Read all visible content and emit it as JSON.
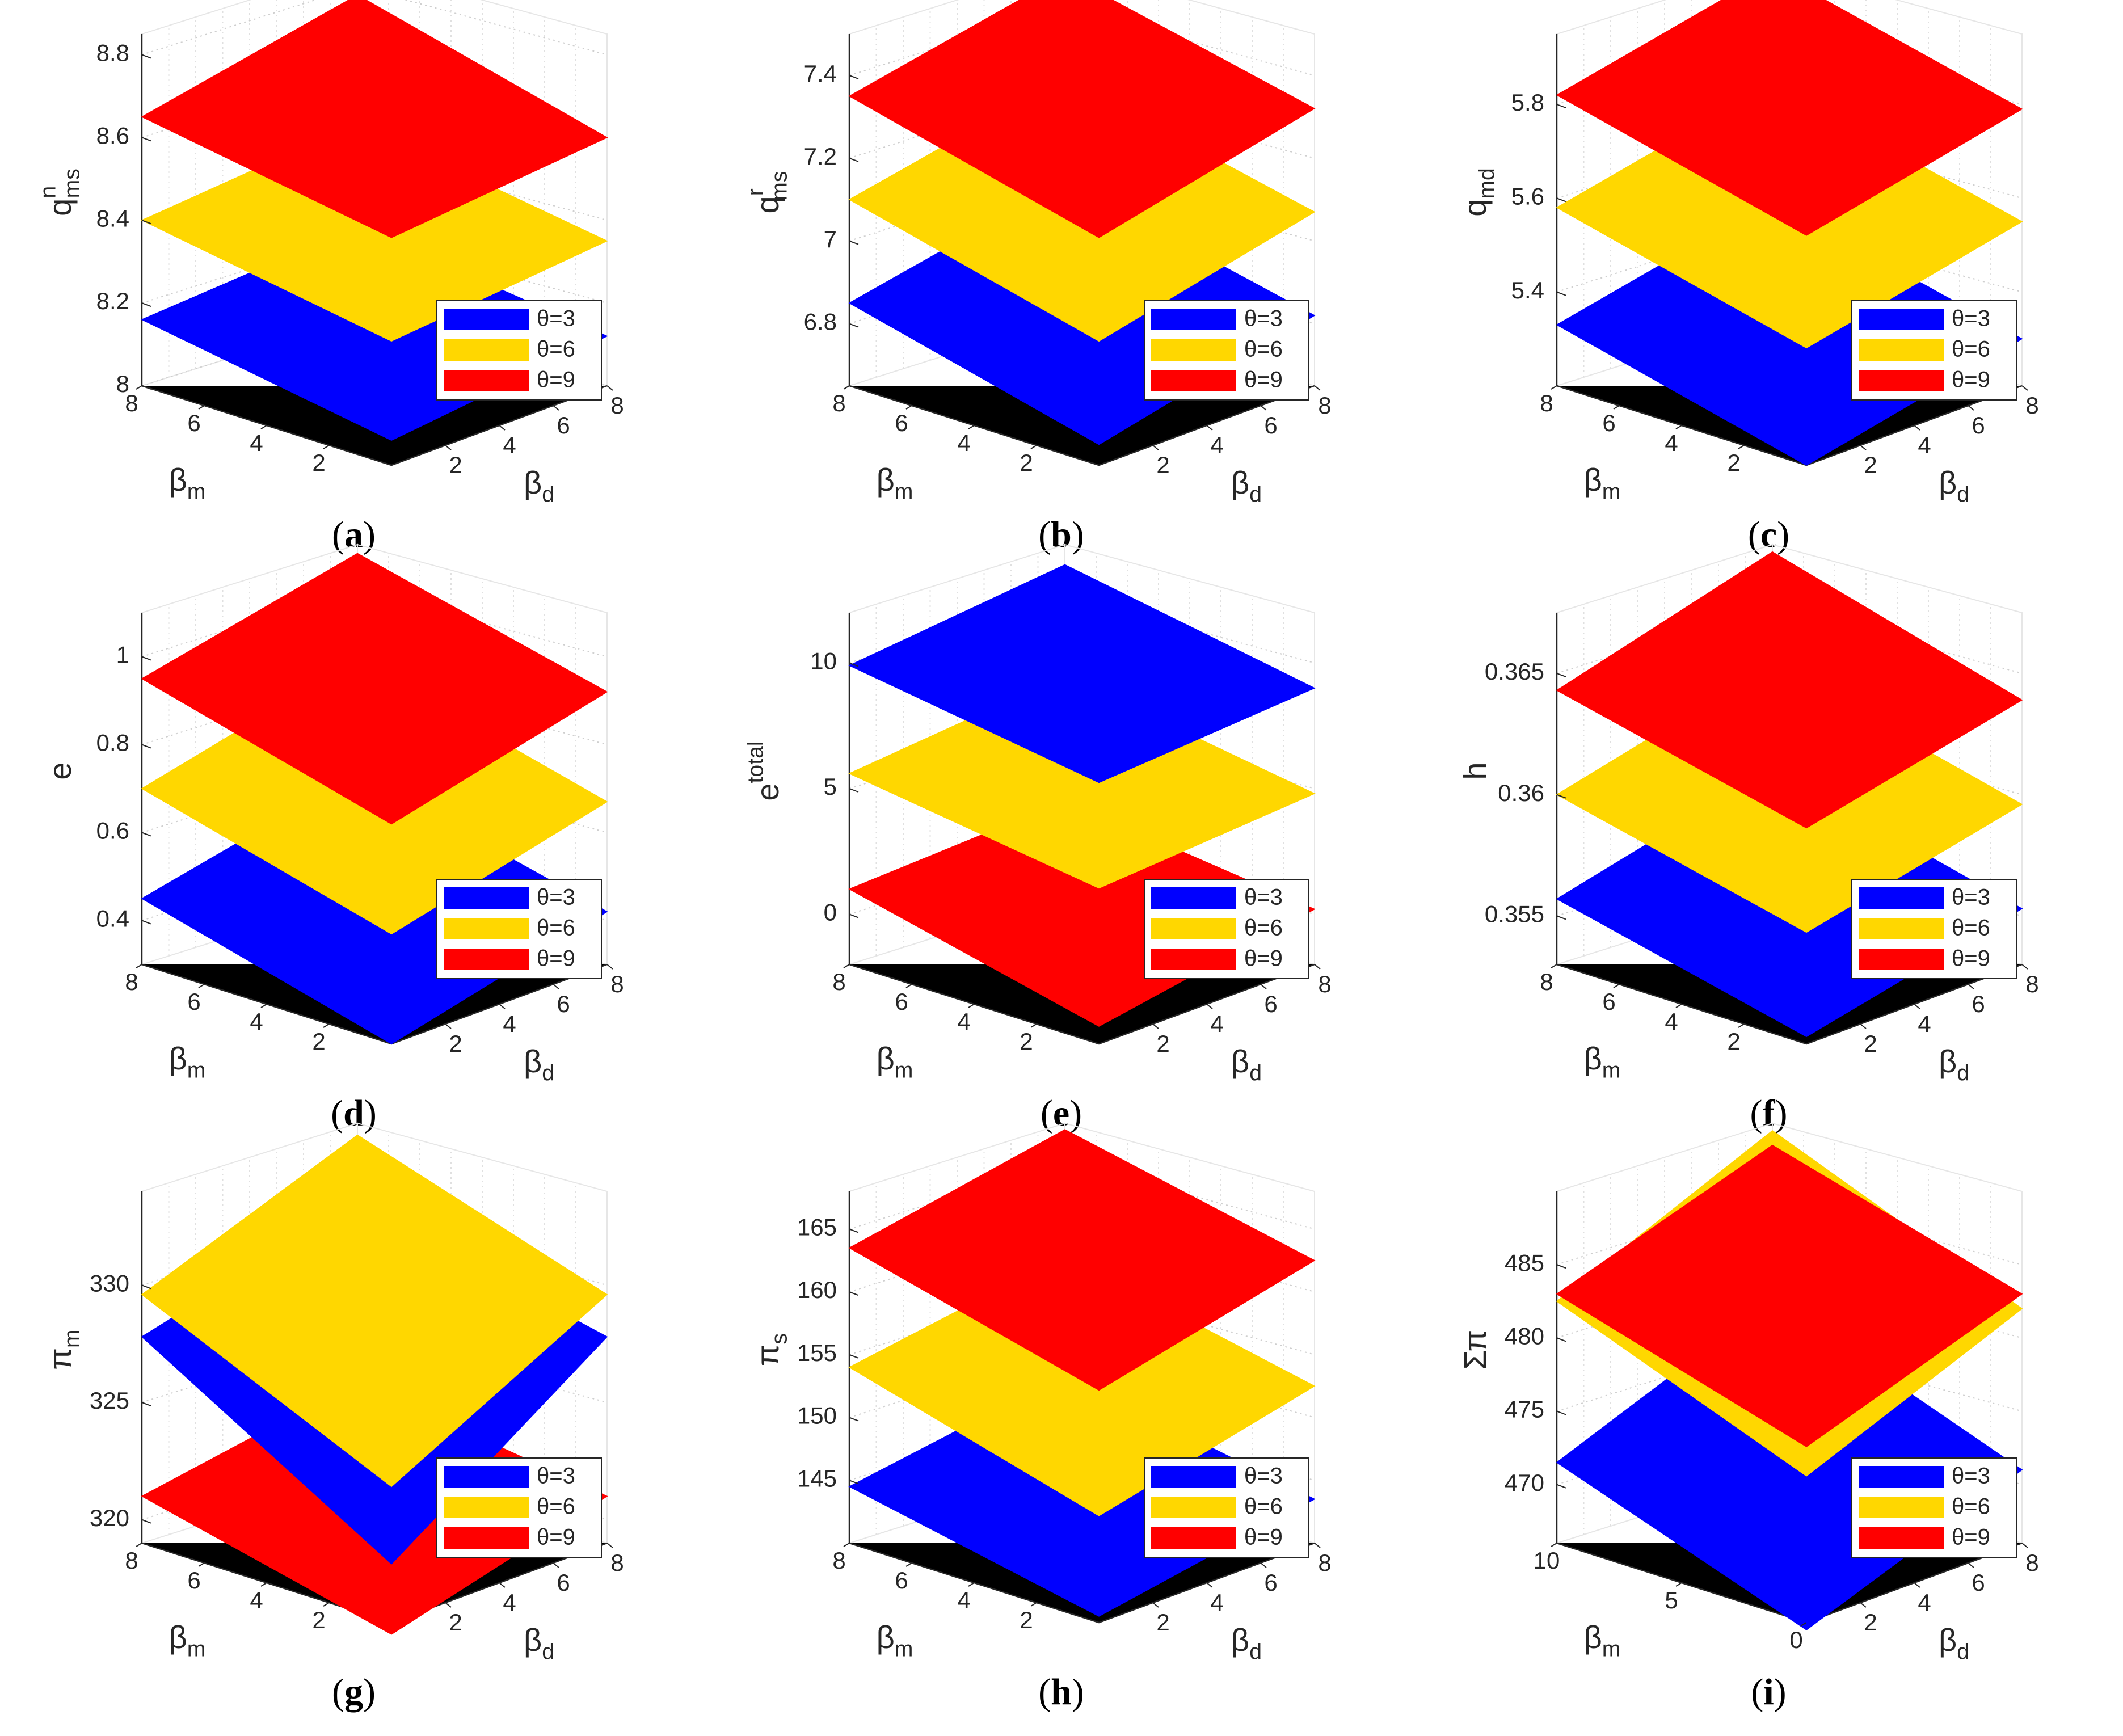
{
  "legend_labels": [
    "θ=3",
    "θ=6",
    "θ=9"
  ],
  "series_colors": {
    "θ=3": "#0000ff",
    "θ=6": "#ffd700",
    "θ=9": "#ff0000"
  },
  "chart_data": [
    {
      "panel": "a",
      "type": "surface",
      "caption_letter": "a",
      "zlabel": "q",
      "zlabel_sup": "n",
      "zlabel_sub": "ms",
      "xlabel": "β",
      "xlabel_sub": "m",
      "ylabel": "β",
      "ylabel_sub": "d",
      "xticks": [
        "8",
        "6",
        "4",
        "2"
      ],
      "yticks": [
        "2",
        "4",
        "6",
        "8"
      ],
      "zticks": [
        "8",
        "8.2",
        "8.4",
        "8.6",
        "8.8"
      ],
      "zlim": [
        8.0,
        8.85
      ],
      "beta_range": [
        0,
        8
      ],
      "series": [
        {
          "name": "θ=3",
          "corners": {
            "m8d0": 8.16,
            "m0d0": 8.06,
            "m0d8": 8.12,
            "m8d8": 8.22
          }
        },
        {
          "name": "θ=6",
          "corners": {
            "m8d0": 8.4,
            "m0d0": 8.3,
            "m0d8": 8.35,
            "m8d8": 8.47
          }
        },
        {
          "name": "θ=9",
          "corners": {
            "m8d0": 8.65,
            "m0d0": 8.55,
            "m0d8": 8.6,
            "m8d8": 8.78
          }
        }
      ]
    },
    {
      "panel": "b",
      "type": "surface",
      "caption_letter": "b",
      "zlabel": "q",
      "zlabel_sup": "r",
      "zlabel_sub": "ms",
      "xlabel": "β",
      "xlabel_sub": "m",
      "ylabel": "β",
      "ylabel_sub": "d",
      "xticks": [
        "8",
        "6",
        "4",
        "2"
      ],
      "yticks": [
        "2",
        "4",
        "6",
        "8"
      ],
      "zticks": [
        "6.8",
        "7",
        "7.2",
        "7.4"
      ],
      "zlim": [
        6.65,
        7.5
      ],
      "beta_range": [
        0,
        8
      ],
      "series": [
        {
          "name": "θ=3",
          "corners": {
            "m8d0": 6.85,
            "m0d0": 6.7,
            "m0d8": 6.82,
            "m8d8": 6.98
          }
        },
        {
          "name": "θ=6",
          "corners": {
            "m8d0": 7.1,
            "m0d0": 6.95,
            "m0d8": 7.07,
            "m8d8": 7.23
          }
        },
        {
          "name": "θ=9",
          "corners": {
            "m8d0": 7.35,
            "m0d0": 7.2,
            "m0d8": 7.32,
            "m8d8": 7.48
          }
        }
      ]
    },
    {
      "panel": "c",
      "type": "surface",
      "caption_letter": "c",
      "zlabel": "q",
      "zlabel_sub": "md",
      "xlabel": "β",
      "xlabel_sub": "m",
      "ylabel": "β",
      "ylabel_sub": "d",
      "xticks": [
        "8",
        "6",
        "4",
        "2"
      ],
      "yticks": [
        "2",
        "4",
        "6",
        "8"
      ],
      "zticks": [
        "5.4",
        "5.6",
        "5.8"
      ],
      "zlim": [
        5.2,
        5.95
      ],
      "beta_range": [
        0,
        8
      ],
      "series": [
        {
          "name": "θ=3",
          "corners": {
            "m8d0": 5.33,
            "m0d0": 5.2,
            "m0d8": 5.3,
            "m8d8": 5.45
          }
        },
        {
          "name": "θ=6",
          "corners": {
            "m8d0": 5.58,
            "m0d0": 5.45,
            "m0d8": 5.55,
            "m8d8": 5.7
          }
        },
        {
          "name": "θ=9",
          "corners": {
            "m8d0": 5.82,
            "m0d0": 5.69,
            "m0d8": 5.79,
            "m8d8": 5.94
          }
        }
      ]
    },
    {
      "panel": "d",
      "type": "surface",
      "caption_letter": "d",
      "zlabel": "e",
      "xlabel": "β",
      "xlabel_sub": "m",
      "ylabel": "β",
      "ylabel_sub": "d",
      "xticks": [
        "8",
        "6",
        "4",
        "2"
      ],
      "yticks": [
        "2",
        "4",
        "6",
        "8"
      ],
      "zticks": [
        "0.4",
        "0.6",
        "0.8",
        "1"
      ],
      "zlim": [
        0.3,
        1.1
      ],
      "beta_range": [
        0,
        8
      ],
      "series": [
        {
          "name": "θ=3",
          "corners": {
            "m8d0": 0.45,
            "m0d0": 0.3,
            "m0d8": 0.42,
            "m8d8": 0.58
          }
        },
        {
          "name": "θ=6",
          "corners": {
            "m8d0": 0.7,
            "m0d0": 0.55,
            "m0d8": 0.67,
            "m8d8": 0.84
          }
        },
        {
          "name": "θ=9",
          "corners": {
            "m8d0": 0.95,
            "m0d0": 0.8,
            "m0d8": 0.92,
            "m8d8": 1.08
          }
        }
      ]
    },
    {
      "panel": "e",
      "type": "surface",
      "caption_letter": "e",
      "zlabel": "e",
      "zlabel_sup": "total",
      "xlabel": "β",
      "xlabel_sub": "m",
      "ylabel": "β",
      "ylabel_sub": "d",
      "xticks": [
        "8",
        "6",
        "4",
        "2"
      ],
      "yticks": [
        "2",
        "4",
        "6",
        "8"
      ],
      "zticks": [
        "0",
        "5",
        "10"
      ],
      "zlim": [
        -2,
        12
      ],
      "beta_range": [
        0,
        8
      ],
      "series": [
        {
          "name": "θ=3",
          "corners": {
            "m8d0": 9.9,
            "m0d0": 8.4,
            "m0d8": 9.0,
            "m8d8": 11.2
          }
        },
        {
          "name": "θ=6",
          "corners": {
            "m8d0": 5.6,
            "m0d0": 4.2,
            "m0d8": 4.8,
            "m8d8": 6.8
          }
        },
        {
          "name": "θ=9",
          "corners": {
            "m8d0": 1.0,
            "m0d0": -1.3,
            "m0d8": 0.2,
            "m8d8": 1.8
          }
        }
      ]
    },
    {
      "panel": "f",
      "type": "surface",
      "caption_letter": "f",
      "zlabel": "h",
      "xlabel": "β",
      "xlabel_sub": "m",
      "ylabel": "β",
      "ylabel_sub": "d",
      "xticks": [
        "8",
        "6",
        "4",
        "2"
      ],
      "yticks": [
        "2",
        "4",
        "6",
        "8"
      ],
      "zticks": [
        "0.355",
        "0.36",
        "0.365"
      ],
      "zlim": [
        0.353,
        0.3675
      ],
      "beta_range": [
        0,
        8
      ],
      "series": [
        {
          "name": "θ=3",
          "corners": {
            "m8d0": 0.3557,
            "m0d0": 0.3533,
            "m0d8": 0.3553,
            "m8d8": 0.3583
          }
        },
        {
          "name": "θ=6",
          "corners": {
            "m8d0": 0.36,
            "m0d0": 0.3576,
            "m0d8": 0.3596,
            "m8d8": 0.3626
          }
        },
        {
          "name": "θ=9",
          "corners": {
            "m8d0": 0.3643,
            "m0d0": 0.3619,
            "m0d8": 0.3639,
            "m8d8": 0.3672
          }
        }
      ]
    },
    {
      "panel": "g",
      "type": "surface",
      "caption_letter": "g",
      "zlabel": "π",
      "zlabel_sub": "m",
      "xlabel": "β",
      "xlabel_sub": "m",
      "ylabel": "β",
      "ylabel_sub": "d",
      "xticks": [
        "8",
        "6",
        "4",
        "2"
      ],
      "yticks": [
        "2",
        "4",
        "6",
        "8"
      ],
      "zticks": [
        "320",
        "325",
        "330"
      ],
      "zlim": [
        319,
        334
      ],
      "beta_range": [
        0,
        8
      ],
      "series": [
        {
          "name": "θ=3",
          "corners": {
            "m8d0": 327.8,
            "m0d0": 321.5,
            "m0d8": 327.8,
            "m8d8": 330.6
          }
        },
        {
          "name": "θ=6",
          "corners": {
            "m8d0": 329.6,
            "m0d0": 324.8,
            "m0d8": 329.6,
            "m8d8": 333.5
          }
        },
        {
          "name": "θ=9",
          "corners": {
            "m8d0": 321.0,
            "m0d0": 318.5,
            "m0d8": 321.0,
            "m8d8": 323.0
          }
        }
      ]
    },
    {
      "panel": "h",
      "type": "surface",
      "caption_letter": "h",
      "zlabel": "π",
      "zlabel_sub": "s",
      "xlabel": "β",
      "xlabel_sub": "m",
      "ylabel": "β",
      "ylabel_sub": "d",
      "xticks": [
        "8",
        "6",
        "4",
        "2"
      ],
      "yticks": [
        "2",
        "4",
        "6",
        "8"
      ],
      "zticks": [
        "145",
        "150",
        "155",
        "160",
        "165"
      ],
      "zlim": [
        140,
        168
      ],
      "beta_range": [
        0,
        8
      ],
      "series": [
        {
          "name": "θ=3",
          "corners": {
            "m8d0": 144.5,
            "m0d0": 140.5,
            "m0d8": 143.5,
            "m8d8": 148.0
          }
        },
        {
          "name": "θ=6",
          "corners": {
            "m8d0": 154.0,
            "m0d0": 148.5,
            "m0d8": 152.5,
            "m8d8": 157.5
          }
        },
        {
          "name": "θ=9",
          "corners": {
            "m8d0": 163.5,
            "m0d0": 158.5,
            "m0d8": 162.5,
            "m8d8": 167.5
          }
        }
      ]
    },
    {
      "panel": "i",
      "type": "surface",
      "caption_letter": "i",
      "zlabel": "Σπ",
      "xlabel": "β",
      "xlabel_sub": "m",
      "ylabel": "β",
      "ylabel_sub": "d",
      "xticks": [
        "10",
        "5",
        "0"
      ],
      "yticks": [
        "2",
        "4",
        "6",
        "8"
      ],
      "zticks": [
        "470",
        "475",
        "480",
        "485"
      ],
      "zlim": [
        466,
        490
      ],
      "beta_range": [
        0,
        10
      ],
      "series": [
        {
          "name": "θ=3",
          "corners": {
            "m8d0": 471.5,
            "m0d0": 465.5,
            "m0d8": 471.0,
            "m8d8": 478.0
          }
        },
        {
          "name": "θ=6",
          "corners": {
            "m8d0": 482.5,
            "m0d0": 476.0,
            "m0d8": 482.0,
            "m8d8": 489.5
          }
        },
        {
          "name": "θ=9",
          "corners": {
            "m8d0": 483.0,
            "m0d0": 478.0,
            "m0d8": 483.0,
            "m8d8": 488.5
          }
        }
      ]
    }
  ]
}
